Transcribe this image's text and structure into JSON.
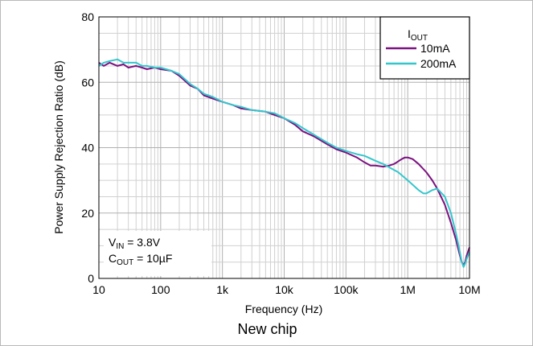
{
  "caption": "New chip",
  "chart_data": {
    "type": "line",
    "xlabel": "Frequency (Hz)",
    "ylabel": "Power Supply Rejection Ratio (dB)",
    "x_scale": "log",
    "xlim": [
      10,
      10000000
    ],
    "ylim": [
      0,
      80
    ],
    "grid": true,
    "x_ticks": [
      {
        "value": 10,
        "label": "10"
      },
      {
        "value": 100,
        "label": "100"
      },
      {
        "value": 1000,
        "label": "1k"
      },
      {
        "value": 10000,
        "label": "10k"
      },
      {
        "value": 100000,
        "label": "100k"
      },
      {
        "value": 1000000,
        "label": "1M"
      },
      {
        "value": 10000000,
        "label": "10M"
      }
    ],
    "y_ticks": [
      {
        "value": 0,
        "label": "0"
      },
      {
        "value": 20,
        "label": "20"
      },
      {
        "value": 40,
        "label": "40"
      },
      {
        "value": 60,
        "label": "60"
      },
      {
        "value": 80,
        "label": "80"
      }
    ],
    "legend": {
      "placement": "top-right",
      "title_main": "I",
      "title_sub": "OUT"
    },
    "annotation": {
      "line1_main": "V",
      "line1_sub": "IN",
      "line1_rest": " = 3.8V",
      "line2_main": "C",
      "line2_sub": "OUT",
      "line2_rest": " = 10µF"
    },
    "series": [
      {
        "name": "10mA",
        "color": "#7b1280",
        "x": [
          10,
          12,
          15,
          20,
          25,
          30,
          40,
          50,
          60,
          80,
          100,
          150,
          200,
          300,
          400,
          500,
          700,
          1000,
          1500,
          2000,
          3000,
          5000,
          7000,
          10000,
          15000,
          20000,
          30000,
          50000,
          70000,
          100000,
          150000,
          200000,
          250000,
          300000,
          400000,
          500000,
          600000,
          700000,
          800000,
          900000,
          1000000,
          1200000,
          1500000,
          2000000,
          2500000,
          3000000,
          4000000,
          5000000,
          6000000,
          7000000,
          7500000,
          8000000,
          8500000,
          9000000,
          10000000
        ],
        "y": [
          66,
          65,
          66,
          65,
          65.5,
          64.5,
          65,
          64.5,
          64,
          64.5,
          64,
          63.5,
          62,
          59,
          58,
          56,
          55,
          54,
          53,
          52,
          51.5,
          51,
          50,
          49,
          47,
          45,
          43.5,
          41,
          39.5,
          38.5,
          37,
          35.5,
          34.5,
          34.5,
          34.2,
          34.5,
          35,
          35.8,
          36.5,
          37,
          37,
          36.5,
          35,
          32.5,
          30,
          27.5,
          22.5,
          17,
          12,
          7,
          5,
          4,
          5,
          7,
          9.5
        ]
      },
      {
        "name": "200mA",
        "color": "#34c6cc",
        "x": [
          10,
          12,
          15,
          20,
          25,
          30,
          40,
          50,
          60,
          80,
          100,
          150,
          200,
          300,
          400,
          500,
          700,
          1000,
          1500,
          2000,
          3000,
          5000,
          7000,
          10000,
          15000,
          20000,
          30000,
          50000,
          70000,
          100000,
          150000,
          200000,
          300000,
          400000,
          500000,
          700000,
          1000000,
          1500000,
          1800000,
          2000000,
          2500000,
          3000000,
          4000000,
          5000000,
          6000000,
          7000000,
          7500000,
          8000000,
          8500000,
          9000000,
          10000000
        ],
        "y": [
          65,
          66,
          66.5,
          67,
          66,
          66,
          66,
          65,
          65,
          64.5,
          64.5,
          63.5,
          62.5,
          59.5,
          58,
          56.5,
          55.5,
          54,
          53,
          52.5,
          51.5,
          51,
          50.5,
          49,
          47.5,
          46,
          44,
          41.5,
          40,
          39,
          38,
          37.5,
          36,
          35,
          34,
          32.5,
          30,
          27,
          26,
          26,
          27,
          27.5,
          25,
          20,
          14,
          8,
          5,
          3.5,
          4.5,
          6,
          8
        ]
      }
    ]
  }
}
